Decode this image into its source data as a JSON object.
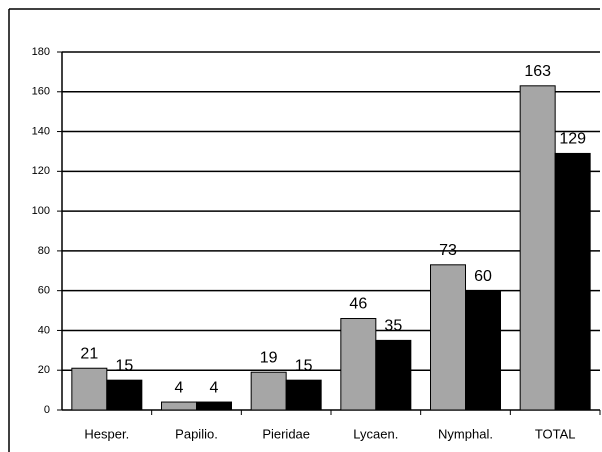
{
  "chart_data": {
    "type": "bar",
    "categories": [
      "Hesper.",
      "Papilio.",
      "Pieridae",
      "Lycaen.",
      "Nymphal.",
      "TOTAL"
    ],
    "series": [
      {
        "color": "#a6a6a6",
        "values": [
          21,
          4,
          19,
          46,
          73,
          163
        ]
      },
      {
        "color": "#000000",
        "values": [
          15,
          4,
          15,
          35,
          60,
          129
        ]
      }
    ],
    "ylim": [
      0,
      180
    ],
    "yticks": [
      0,
      20,
      40,
      60,
      80,
      100,
      120,
      140,
      160,
      180
    ],
    "grid": true
  }
}
